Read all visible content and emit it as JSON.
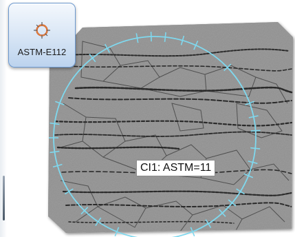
{
  "app_tile": {
    "label": "ASTM-E112",
    "icon": "grain-size-icon"
  },
  "image": {
    "description_icon": "micrograph-image"
  },
  "overlay": {
    "circle_color": "#7fd8ee",
    "result_label": "CI1: ASTM=11"
  }
}
